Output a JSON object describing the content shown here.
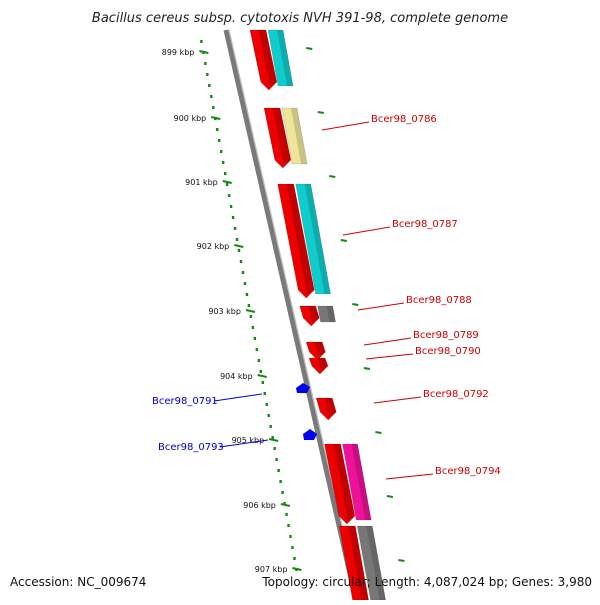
{
  "title": "Bacillus cereus subsp. cytotoxis NVH 391-98, complete genome",
  "footer": {
    "accession": "Accession: NC_009674",
    "summary": "Topology: circular; Length: 4,087,024 bp; Genes: 3,980"
  },
  "colors": {
    "backbone": "#7a7a7a",
    "tick": "#118a11",
    "forward_label": "#cc0000",
    "reverse_label": "#0000cc",
    "gene_red": "#ee0000",
    "gene_blue": "#0000ee",
    "cyan": "#11cccc",
    "khaki": "#eee49a",
    "gray": "#777777",
    "magenta": "#ee1199"
  },
  "ticks": [
    "899 kbp",
    "900 kbp",
    "901 kbp",
    "902 kbp",
    "903 kbp",
    "904 kbp",
    "905 kbp",
    "906 kbp",
    "907 kbp"
  ],
  "genes_forward": [
    {
      "label": "",
      "cog_color": "cyan"
    },
    {
      "label": "Bcer98_0786",
      "cog_color": "khaki"
    },
    {
      "label": "Bcer98_0787",
      "cog_color": "cyan"
    },
    {
      "label": "Bcer98_0788",
      "cog_color": "gray"
    },
    {
      "label": "Bcer98_0789",
      "cog_color": ""
    },
    {
      "label": "Bcer98_0790",
      "cog_color": ""
    },
    {
      "label": "Bcer98_0792",
      "cog_color": ""
    },
    {
      "label": "Bcer98_0794",
      "cog_color": "magenta"
    },
    {
      "label": "",
      "cog_color": "gray"
    }
  ],
  "genes_reverse": [
    {
      "label": "Bcer98_0791"
    },
    {
      "label": "Bcer98_0793"
    }
  ]
}
